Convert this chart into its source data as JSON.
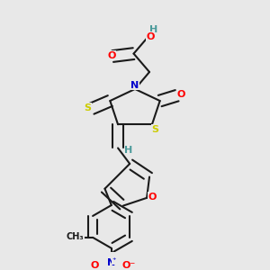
{
  "bg_color": "#e8e8e8",
  "bond_color": "#1a1a1a",
  "atom_colors": {
    "O": "#ff0000",
    "N": "#0000cc",
    "S": "#cccc00",
    "H": "#4a9a9a",
    "C": "#1a1a1a"
  },
  "figsize": [
    3.0,
    3.0
  ],
  "dpi": 100,
  "lw": 1.5
}
